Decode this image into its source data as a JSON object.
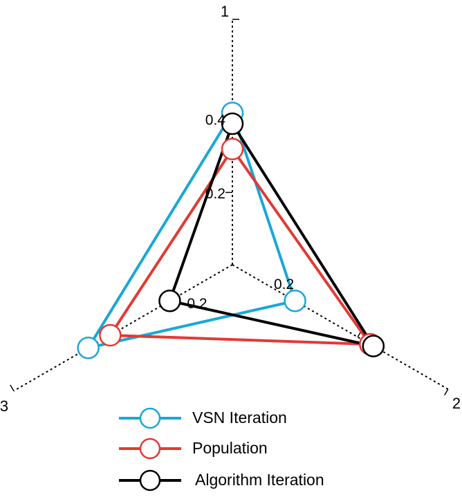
{
  "chart_data": {
    "type": "radar",
    "axes": [
      "1",
      "2",
      "3"
    ],
    "tick_labels": {
      "axis_1": [
        "0.2",
        "0.4"
      ],
      "axis_2": [
        "0.2"
      ],
      "axis_3": [
        "0.2"
      ]
    },
    "axis_max": 0.5,
    "series": [
      {
        "name": "VSN Iteration",
        "color": "#1aa7d6",
        "values": [
          0.42,
          0.2,
          0.46
        ]
      },
      {
        "name": "Population",
        "color": "#e23a33",
        "values": [
          0.32,
          0.44,
          0.39
        ]
      },
      {
        "name": "Algorithm Iteration",
        "color": "#000000",
        "values": [
          0.39,
          0.45,
          0.2
        ]
      }
    ],
    "legend_position": "bottom-center"
  }
}
